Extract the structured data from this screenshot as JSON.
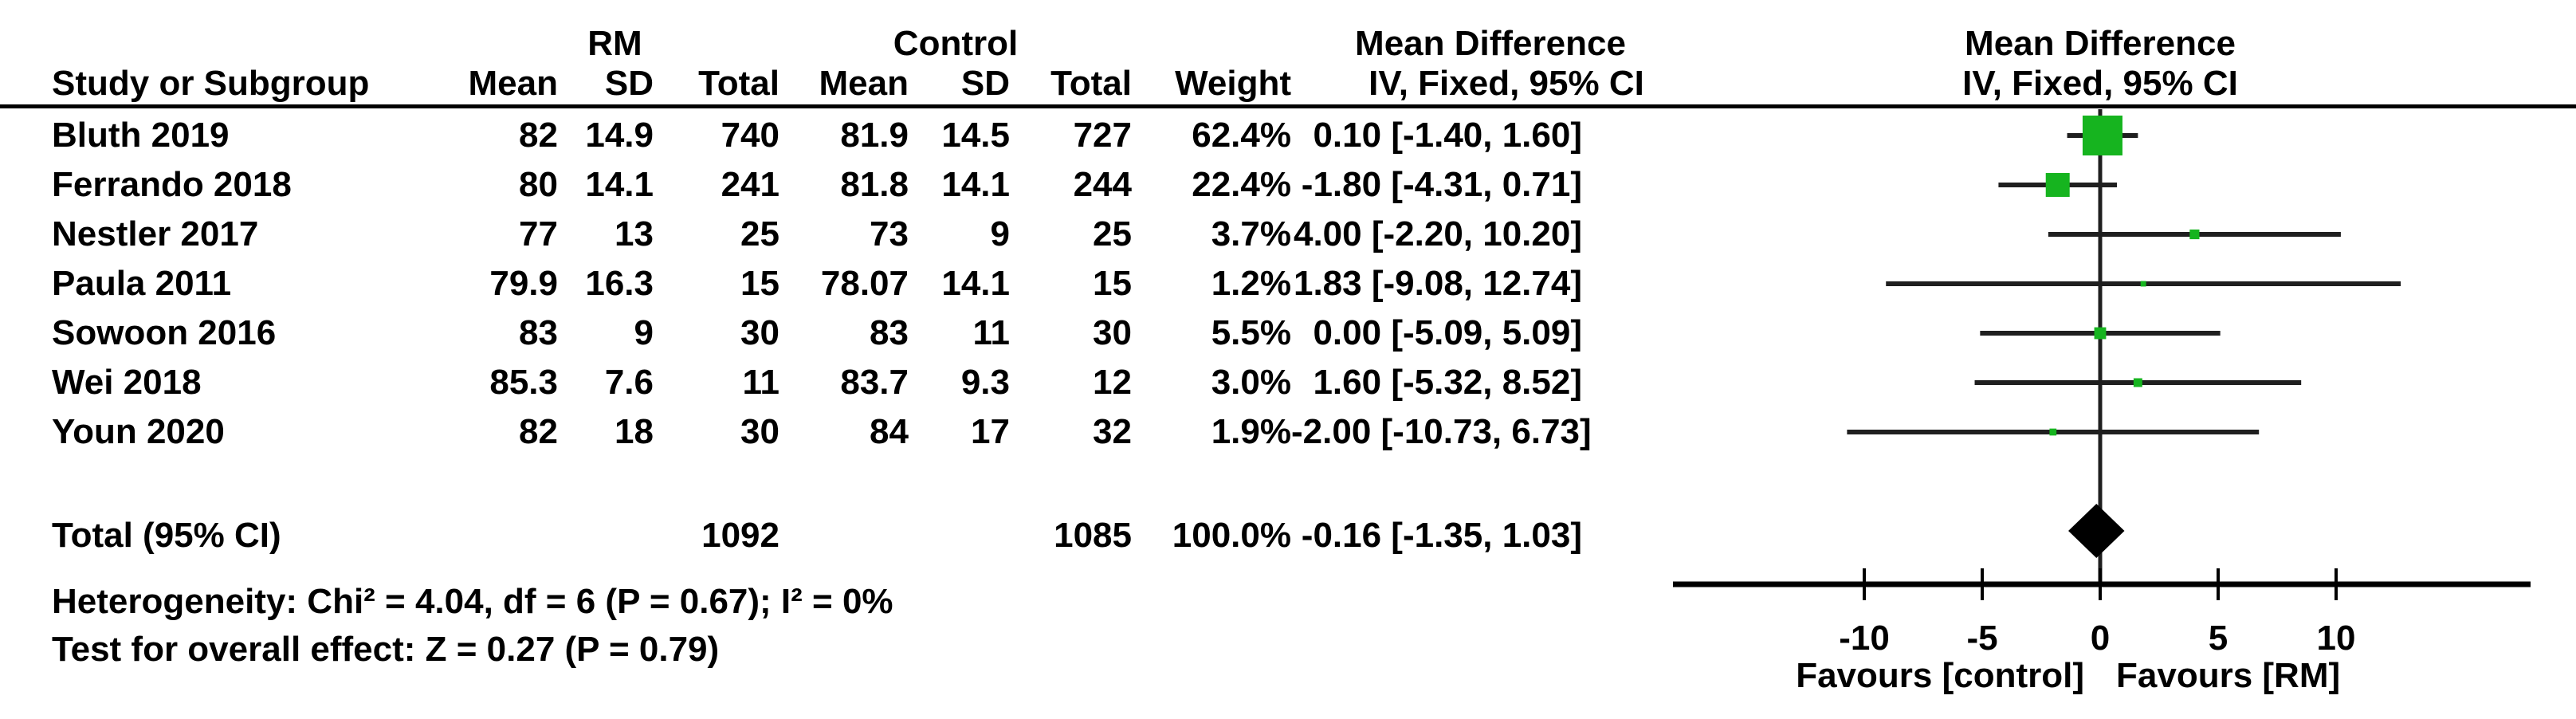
{
  "colors": {
    "square": "#16b41f",
    "diamond": "#000000",
    "line": "#1f1f1f",
    "axis": "#000000"
  },
  "header": {
    "group_rm": "RM",
    "group_control": "Control",
    "col_study": "Study or Subgroup",
    "col_mean": "Mean",
    "col_sd": "SD",
    "col_total": "Total",
    "col_weight": "Weight",
    "md_title": "Mean Difference",
    "md_subtitle": "IV, Fixed, 95% CI",
    "plot_title": "Mean Difference",
    "plot_subtitle": "IV, Fixed, 95% CI"
  },
  "footer": {
    "heterogeneity": "Heterogeneity: Chi² = 4.04, df = 6 (P = 0.67); I² = 0%",
    "overall_effect": "Test for overall effect: Z = 0.27 (P = 0.79)"
  },
  "chart_data": {
    "type": "forest",
    "effect_measure": "Mean Difference",
    "method": "IV, Fixed",
    "ci_level": "95% CI",
    "x_axis": {
      "ticks": [
        -10,
        -5,
        0,
        5,
        10
      ],
      "range": [
        -18.1,
        18.2
      ],
      "favours_left": "Favours [control]",
      "favours_right": "Favours [RM]"
    },
    "studies": [
      {
        "name": "Bluth 2019",
        "rm_mean": "82",
        "rm_sd": "14.9",
        "rm_total": "740",
        "c_mean": "81.9",
        "c_sd": "14.5",
        "c_total": "727",
        "weight": "62.4%",
        "md_ci_text": "0.10 [-1.40, 1.60]",
        "md": 0.1,
        "ci_lo": -1.4,
        "ci_hi": 1.6,
        "weight_pct": 62.4
      },
      {
        "name": "Ferrando 2018",
        "rm_mean": "80",
        "rm_sd": "14.1",
        "rm_total": "241",
        "c_mean": "81.8",
        "c_sd": "14.1",
        "c_total": "244",
        "weight": "22.4%",
        "md_ci_text": "-1.80 [-4.31, 0.71]",
        "md": -1.8,
        "ci_lo": -4.31,
        "ci_hi": 0.71,
        "weight_pct": 22.4
      },
      {
        "name": "Nestler 2017",
        "rm_mean": "77",
        "rm_sd": "13",
        "rm_total": "25",
        "c_mean": "73",
        "c_sd": "9",
        "c_total": "25",
        "weight": "3.7%",
        "md_ci_text": "4.00 [-2.20, 10.20]",
        "md": 4.0,
        "ci_lo": -2.2,
        "ci_hi": 10.2,
        "weight_pct": 3.7
      },
      {
        "name": "Paula 2011",
        "rm_mean": "79.9",
        "rm_sd": "16.3",
        "rm_total": "15",
        "c_mean": "78.07",
        "c_sd": "14.1",
        "c_total": "15",
        "weight": "1.2%",
        "md_ci_text": "1.83 [-9.08, 12.74]",
        "md": 1.83,
        "ci_lo": -9.08,
        "ci_hi": 12.74,
        "weight_pct": 1.2
      },
      {
        "name": "Sowoon 2016",
        "rm_mean": "83",
        "rm_sd": "9",
        "rm_total": "30",
        "c_mean": "83",
        "c_sd": "11",
        "c_total": "30",
        "weight": "5.5%",
        "md_ci_text": "0.00 [-5.09, 5.09]",
        "md": 0.0,
        "ci_lo": -5.09,
        "ci_hi": 5.09,
        "weight_pct": 5.5
      },
      {
        "name": "Wei 2018",
        "rm_mean": "85.3",
        "rm_sd": "7.6",
        "rm_total": "11",
        "c_mean": "83.7",
        "c_sd": "9.3",
        "c_total": "12",
        "weight": "3.0%",
        "md_ci_text": "1.60 [-5.32, 8.52]",
        "md": 1.6,
        "ci_lo": -5.32,
        "ci_hi": 8.52,
        "weight_pct": 3.0
      },
      {
        "name": "Youn 2020",
        "rm_mean": "82",
        "rm_sd": "18",
        "rm_total": "30",
        "c_mean": "84",
        "c_sd": "17",
        "c_total": "32",
        "weight": "1.9%",
        "md_ci_text": "-2.00 [-10.73, 6.73]",
        "md": -2.0,
        "ci_lo": -10.73,
        "ci_hi": 6.73,
        "weight_pct": 1.9
      }
    ],
    "total": {
      "label": "Total (95% CI)",
      "rm_total": "1092",
      "c_total": "1085",
      "weight": "100.0%",
      "md_ci_text": "-0.16 [-1.35, 1.03]",
      "md": -0.16,
      "ci_lo": -1.35,
      "ci_hi": 1.03
    }
  }
}
